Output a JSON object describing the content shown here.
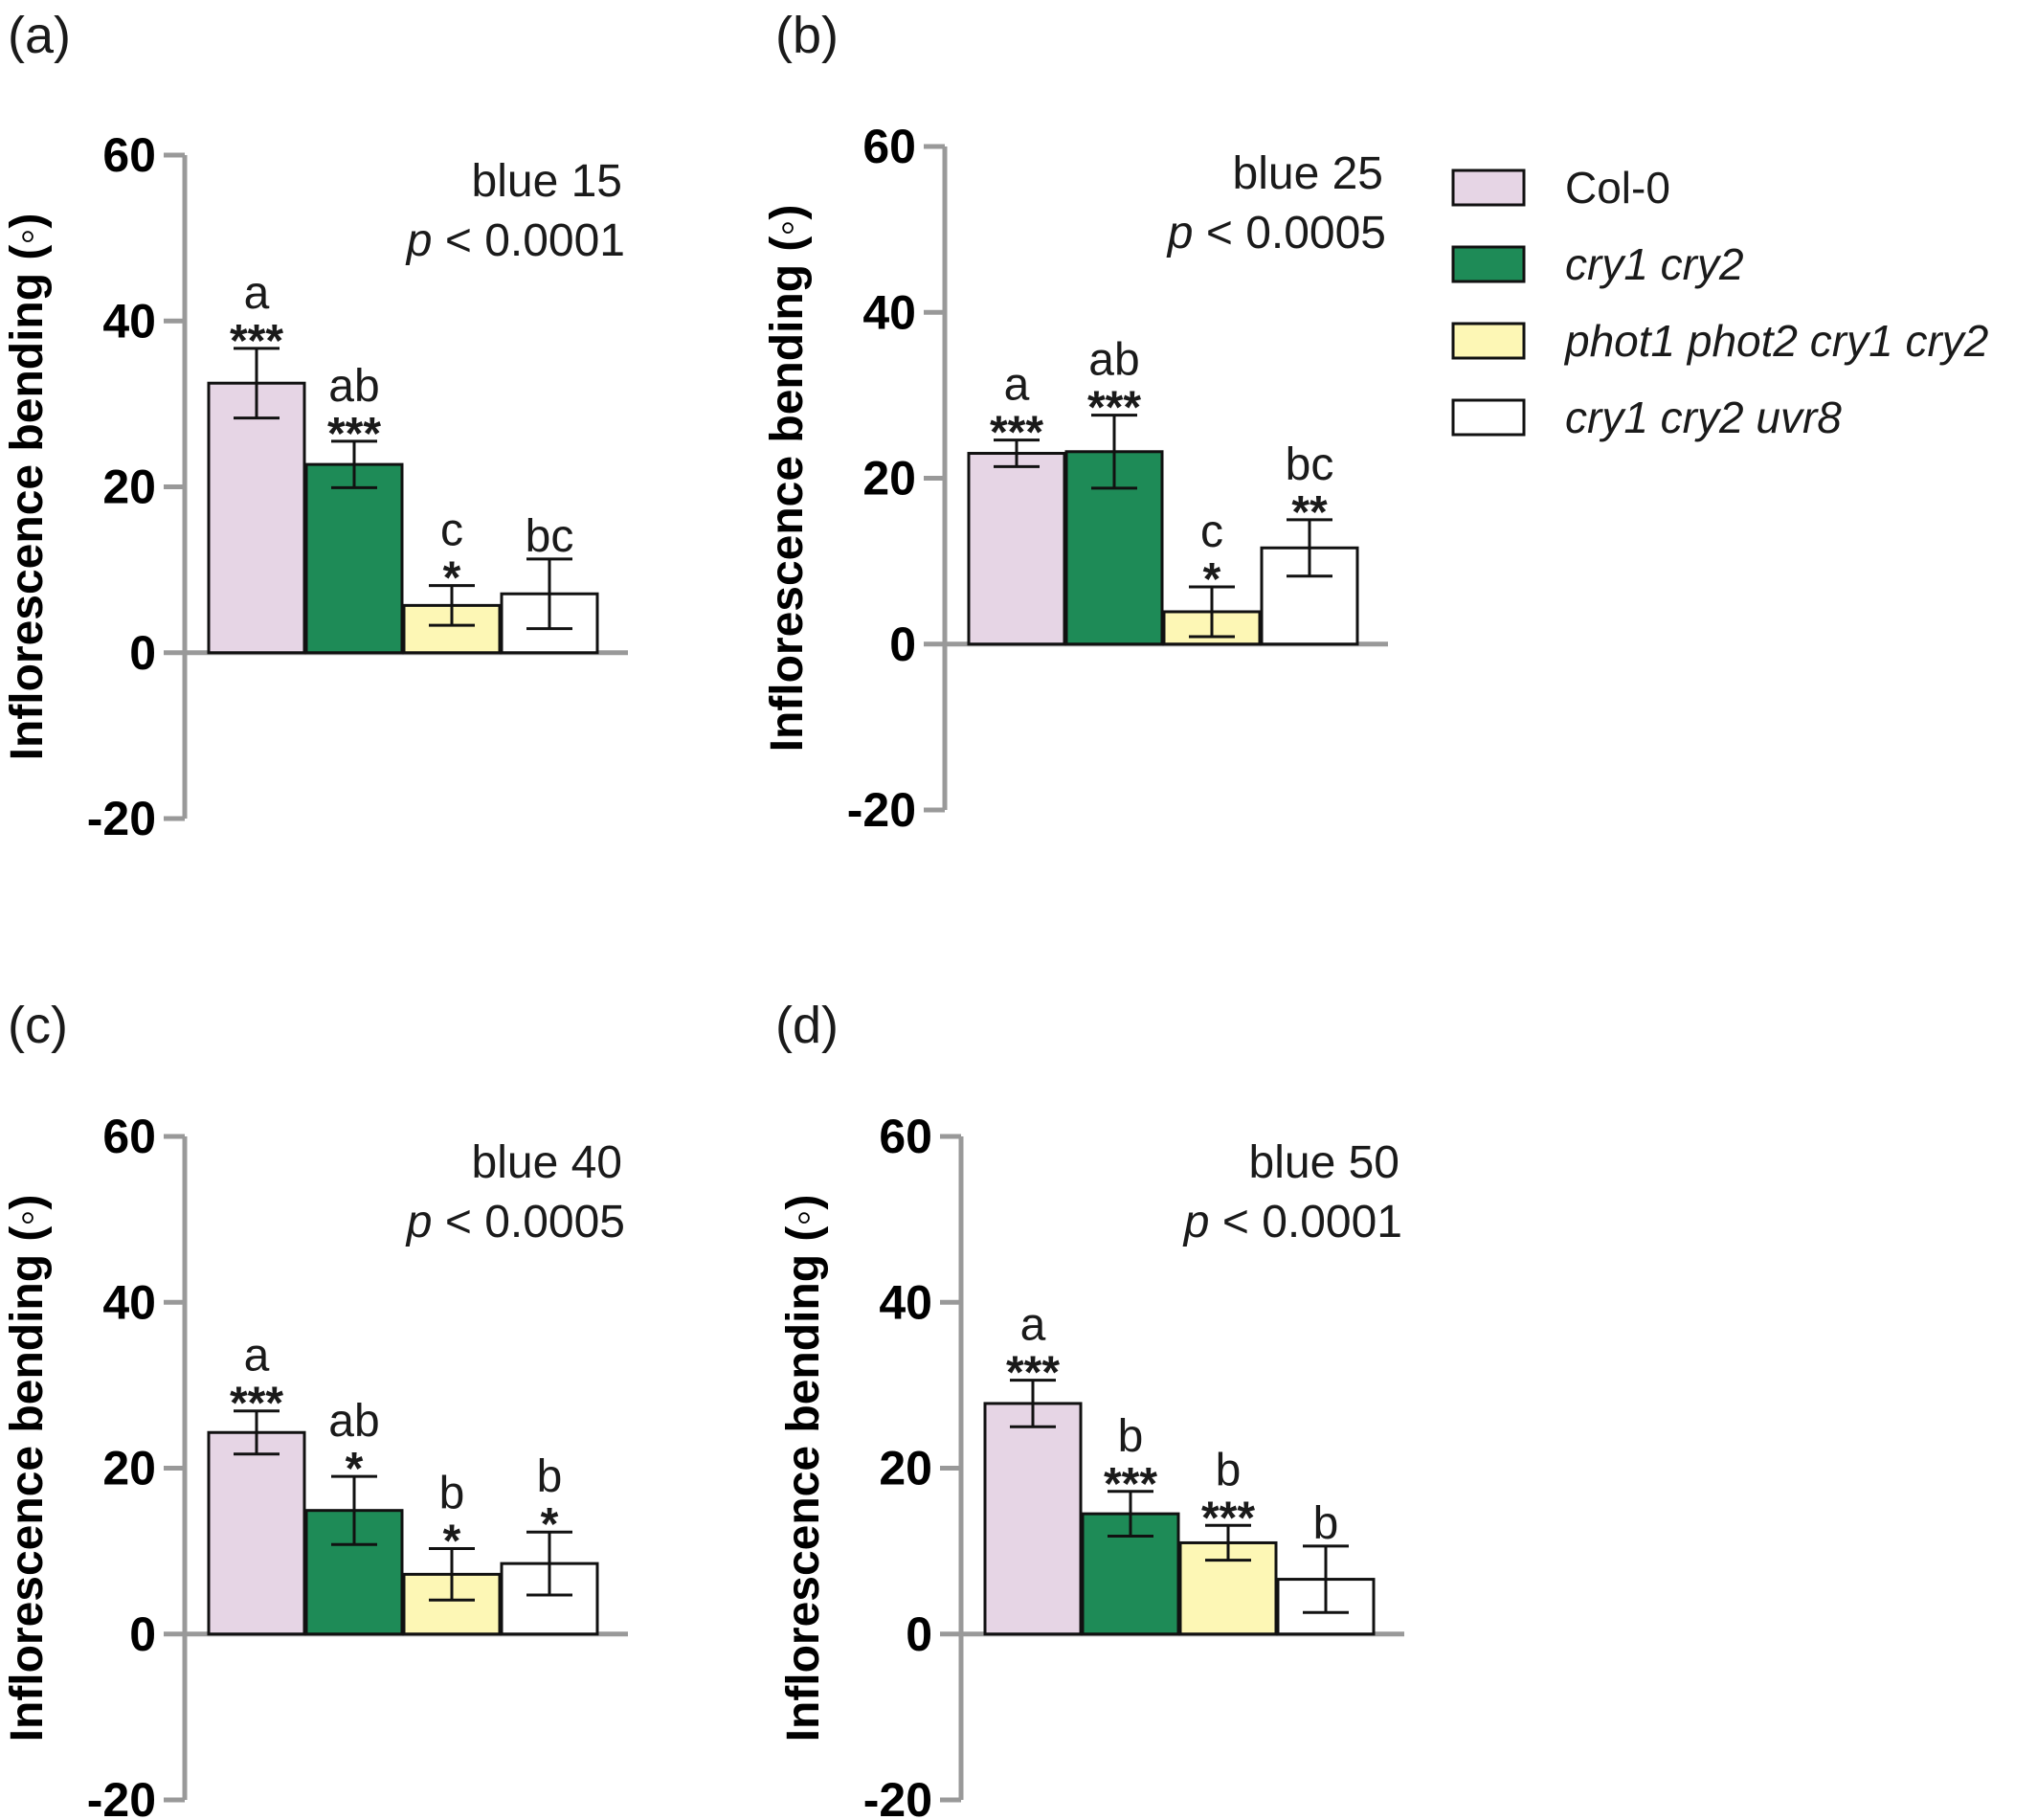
{
  "legend": [
    {
      "label": "Col-0",
      "color": "#e6d5e5",
      "italic": false
    },
    {
      "label": "cry1 cry2",
      "color": "#1e8b57",
      "italic": true
    },
    {
      "label": "phot1 phot2 cry1 cry2",
      "color": "#fdf7b5",
      "italic": true
    },
    {
      "label": "cry1 cry2 uvr8",
      "color": "#ffffff",
      "italic": true
    }
  ],
  "chart_data": [
    {
      "type": "bar",
      "panel_label": "(a)",
      "condition": "blue 15",
      "p_prefix": "p",
      "p_value": " < 0.0001",
      "ylabel": "Inflorescence bending (◦)",
      "ylim": [
        -20,
        60
      ],
      "yticks": [
        "60",
        "40",
        "20",
        "0",
        "-20"
      ],
      "categories": [
        "Col-0",
        "cry1 cry2",
        "phot1 phot2 cry1 cry2",
        "cry1 cry2 uvr8"
      ],
      "values": [
        32.5,
        22.7,
        5.7,
        7.1
      ],
      "errors": [
        4.2,
        2.8,
        2.4,
        4.2
      ],
      "letters": [
        "a",
        "ab",
        "c",
        "bc"
      ],
      "stars": [
        "***",
        "***",
        "*",
        ""
      ]
    },
    {
      "type": "bar",
      "panel_label": "(b)",
      "condition": "blue 25",
      "p_prefix": "p",
      "p_value": " < 0.0005",
      "ylabel": "Inflorescence bending (◦)",
      "ylim": [
        -20,
        60
      ],
      "yticks": [
        "60",
        "40",
        "20",
        "0",
        "-20"
      ],
      "categories": [
        "Col-0",
        "cry1 cry2",
        "phot1 phot2 cry1 cry2",
        "cry1 cry2 uvr8"
      ],
      "values": [
        23.0,
        23.2,
        3.9,
        11.6
      ],
      "errors": [
        1.6,
        4.4,
        3.0,
        3.4
      ],
      "letters": [
        "a",
        "ab",
        "c",
        "bc"
      ],
      "stars": [
        "***",
        "***",
        "*",
        "**"
      ]
    },
    {
      "type": "bar",
      "panel_label": "(c)",
      "condition": "blue 40",
      "p_prefix": "p",
      "p_value": " < 0.0005",
      "ylabel": "Inflorescence bending (◦)",
      "ylim": [
        -20,
        60
      ],
      "yticks": [
        "60",
        "40",
        "20",
        "0",
        "-20"
      ],
      "categories": [
        "Col-0",
        "cry1 cry2",
        "phot1 phot2 cry1 cry2",
        "cry1 cry2 uvr8"
      ],
      "values": [
        24.3,
        14.9,
        7.2,
        8.5
      ],
      "errors": [
        2.6,
        4.1,
        3.1,
        3.8
      ],
      "letters": [
        "a",
        "ab",
        "b",
        "b"
      ],
      "stars": [
        "***",
        "*",
        "*",
        "*"
      ]
    },
    {
      "type": "bar",
      "panel_label": "(d)",
      "condition": "blue 50",
      "p_prefix": "p",
      "p_value": " < 0.0001",
      "ylabel": "Inflorescence bending (◦)",
      "ylim": [
        -20,
        60
      ],
      "yticks": [
        "60",
        "40",
        "20",
        "0",
        "-20"
      ],
      "categories": [
        "Col-0",
        "cry1 cry2",
        "phot1 phot2 cry1 cry2",
        "cry1 cry2 uvr8"
      ],
      "values": [
        27.8,
        14.5,
        11.0,
        6.6
      ],
      "errors": [
        2.8,
        2.7,
        2.1,
        4.0
      ],
      "letters": [
        "a",
        "b",
        "b",
        "b"
      ],
      "stars": [
        "***",
        "***",
        "***",
        ""
      ]
    }
  ]
}
